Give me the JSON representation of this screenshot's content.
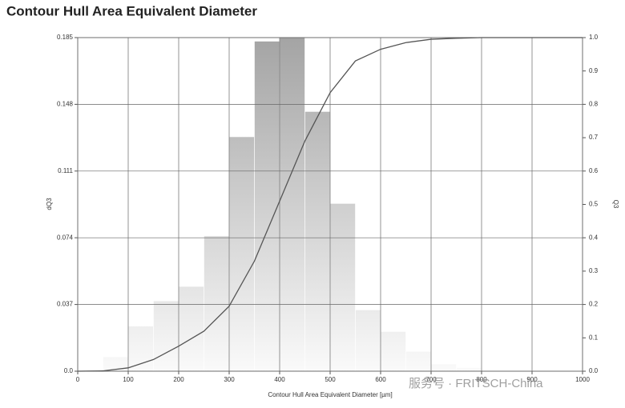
{
  "chart_data": {
    "type": "histogram",
    "title": "Contour Hull Area Equivalent Diameter",
    "xlabel": "Contour Hull Area Equivalent Diameter [µm]",
    "ylabel": "dQ3",
    "y2label": "Q3",
    "watermark": "服务号 · FRITSCH-China",
    "bins": [
      0,
      50,
      100,
      150,
      200,
      250,
      300,
      350,
      400,
      450,
      500,
      550,
      600,
      650,
      700,
      750,
      800
    ],
    "counts": [
      0,
      0.008,
      0.025,
      0.039,
      0.047,
      0.075,
      0.13,
      0.183,
      0.185,
      0.144,
      0.093,
      0.034,
      0.022,
      0.011,
      0.004,
      0.002
    ],
    "color": "#a4a4a4",
    "cumulative": {
      "axis": "y2",
      "color": "#555555",
      "x": [
        0,
        50,
        100,
        150,
        200,
        250,
        300,
        350,
        400,
        450,
        500,
        550,
        600,
        650,
        700,
        750,
        800,
        1000
      ],
      "values": [
        0,
        0.001,
        0.01,
        0.035,
        0.075,
        0.12,
        0.195,
        0.33,
        0.51,
        0.69,
        0.835,
        0.93,
        0.965,
        0.985,
        0.995,
        0.998,
        1.0,
        1.0
      ]
    },
    "xlim": [
      0,
      1000
    ],
    "xticks": [
      0,
      100,
      200,
      300,
      400,
      500,
      600,
      700,
      800,
      900,
      1000
    ],
    "ylim": [
      0,
      0.185
    ],
    "yticks": [
      {
        "value": 0,
        "label": "0.0"
      },
      0.037,
      0.074,
      0.111,
      0.148,
      0.185
    ],
    "y2lim": [
      0,
      1
    ],
    "y2ticks": [
      {
        "value": 0,
        "label": "0.0"
      },
      0.1,
      0.2,
      0.3,
      0.4,
      0.5,
      0.6,
      0.7,
      0.8,
      0.9,
      {
        "value": 1,
        "label": "1.0"
      }
    ],
    "grid": true
  }
}
